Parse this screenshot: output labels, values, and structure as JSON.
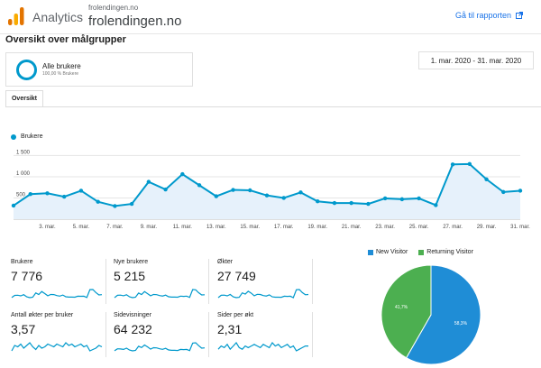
{
  "header": {
    "app_name": "Analytics",
    "account": "frolendingen.no",
    "property": "frolendingen.no",
    "report_link": "Gå til rapporten"
  },
  "page_title": "Oversikt over målgrupper",
  "segment": {
    "name": "Alle brukere",
    "percent": "100,00 % Brukere"
  },
  "date_range": "1. mar. 2020 - 31. mar. 2020",
  "tab": "Oversikt",
  "colors": {
    "primary": "#0099cc",
    "new_visitor": "#1f8dd6",
    "returning_visitor": "#4caf50",
    "link": "#1a73e8"
  },
  "chart_data": [
    {
      "type": "line",
      "series": [
        {
          "name": "Brukere",
          "x": [
            1,
            2,
            3,
            4,
            5,
            6,
            7,
            8,
            9,
            10,
            11,
            12,
            13,
            14,
            15,
            16,
            17,
            18,
            19,
            20,
            21,
            22,
            23,
            24,
            25,
            26,
            27,
            28,
            29,
            30,
            31
          ],
          "values": [
            320,
            590,
            610,
            530,
            670,
            410,
            310,
            360,
            880,
            700,
            1060,
            800,
            540,
            690,
            680,
            560,
            500,
            630,
            420,
            380,
            380,
            360,
            490,
            470,
            490,
            330,
            1290,
            1300,
            940,
            640,
            670
          ]
        }
      ],
      "y_ticks": [
        "500",
        "1 000",
        "1 500"
      ],
      "ylim": [
        0,
        1700
      ],
      "x_ticks": [
        "3. mar.",
        "5. mar.",
        "7. mar.",
        "9. mar.",
        "11. mar.",
        "13. mar.",
        "15. mar.",
        "17. mar.",
        "19. mar.",
        "21. mar.",
        "23. mar.",
        "25. mar.",
        "27. mar.",
        "29. mar.",
        "31. mar."
      ],
      "legend": "top-left",
      "grid": true
    },
    {
      "type": "pie",
      "categories": [
        "New Visitor",
        "Returning Visitor"
      ],
      "values": [
        58.3,
        41.7
      ],
      "data_labels": [
        "58,3%",
        "41,7%"
      ],
      "legend": "top"
    }
  ],
  "metrics": [
    {
      "label": "Brukere",
      "value": "7 776",
      "spark": [
        32,
        59,
        61,
        53,
        67,
        41,
        31,
        36,
        88,
        70,
        106,
        80,
        54,
        69,
        68,
        56,
        50,
        63,
        42,
        38,
        38,
        36,
        49,
        47,
        49,
        33,
        129,
        130,
        94,
        64,
        67
      ]
    },
    {
      "label": "Nye brukere",
      "value": "5 215",
      "spark": [
        20,
        40,
        42,
        36,
        45,
        27,
        20,
        24,
        60,
        47,
        72,
        54,
        36,
        47,
        46,
        38,
        34,
        42,
        28,
        25,
        25,
        24,
        33,
        31,
        33,
        22,
        90,
        88,
        63,
        43,
        45
      ]
    },
    {
      "label": "Økter",
      "value": "27 749",
      "spark": [
        40,
        70,
        72,
        63,
        80,
        50,
        40,
        45,
        100,
        84,
        120,
        95,
        64,
        82,
        80,
        66,
        60,
        75,
        50,
        46,
        46,
        44,
        58,
        56,
        58,
        40,
        140,
        142,
        104,
        76,
        80
      ]
    },
    {
      "label": "Antall økter per bruker",
      "value": "3,57",
      "spark": [
        30,
        34,
        33,
        35,
        32,
        34,
        36,
        33,
        31,
        34,
        32,
        33,
        35,
        34,
        33,
        35,
        34,
        33,
        36,
        34,
        35,
        33,
        34,
        35,
        33,
        34,
        30,
        31,
        32,
        34,
        33
      ]
    },
    {
      "label": "Sidevisninger",
      "value": "64 232",
      "spark": [
        80,
        110,
        108,
        100,
        120,
        90,
        78,
        85,
        150,
        130,
        170,
        140,
        105,
        128,
        125,
        110,
        102,
        118,
        92,
        86,
        86,
        84,
        100,
        98,
        100,
        82,
        200,
        205,
        160,
        120,
        125
      ]
    },
    {
      "label": "Sider per økt",
      "value": "2,31",
      "spark": [
        22,
        24,
        23,
        25,
        22,
        24,
        26,
        23,
        22,
        24,
        23,
        24,
        25,
        24,
        23,
        25,
        24,
        23,
        26,
        24,
        25,
        23,
        24,
        25,
        23,
        24,
        21,
        22,
        23,
        24,
        24
      ]
    }
  ]
}
